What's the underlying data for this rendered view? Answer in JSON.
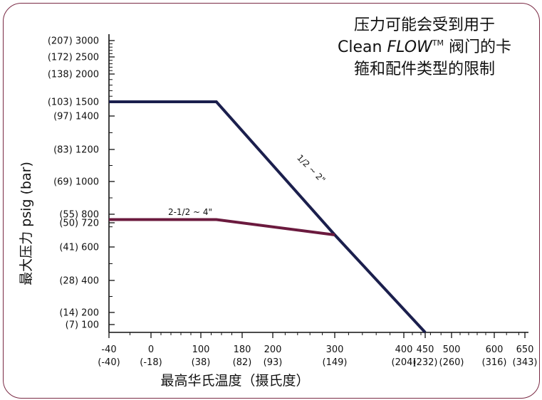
{
  "chart_data": {
    "type": "line",
    "title": {
      "line1": "压力可能会受到用于",
      "line2_prefix": "Clean ",
      "line2_italic": "FLOW",
      "line2_tm": "TM",
      "line2_suffix": " 阀门的卡",
      "line3": "箍和配件类型的限制"
    },
    "xlabel": "最高华氏温度（摄氏度）",
    "ylabel": "最大压力 psig (bar)",
    "xlim": [
      -40,
      650
    ],
    "ylim": [
      0,
      3000
    ],
    "x_ticks": [
      {
        "value": -40,
        "label": "-40",
        "sublabel": "(-40)"
      },
      {
        "value": 0,
        "label": "0",
        "sublabel": "(-18)"
      },
      {
        "value": 100,
        "label": "100",
        "sublabel": "(38)"
      },
      {
        "value": 180,
        "label": "180",
        "sublabel": "(82)"
      },
      {
        "value": 200,
        "label": "200",
        "sublabel": "(93)"
      },
      {
        "value": 300,
        "label": "300",
        "sublabel": "(149)"
      },
      {
        "value": 400,
        "label": "400",
        "sublabel": "(204)"
      },
      {
        "value": 450,
        "label": "450",
        "sublabel": "(232)"
      },
      {
        "value": 500,
        "label": "500",
        "sublabel": "(260)"
      },
      {
        "value": 600,
        "label": "600",
        "sublabel": "(316)"
      },
      {
        "value": 650,
        "label": "650",
        "sublabel": "(343)"
      }
    ],
    "y_ticks": [
      {
        "value": 3000,
        "label": "(207) 3000"
      },
      {
        "value": 2500,
        "label": "(172) 2500"
      },
      {
        "value": 2000,
        "label": "(138) 2000"
      },
      {
        "value": 1500,
        "label": "(103) 1500"
      },
      {
        "value": 1400,
        "label": "(97) 1400"
      },
      {
        "value": 1200,
        "label": "(83) 1200"
      },
      {
        "value": 1000,
        "label": "(69) 1000"
      },
      {
        "value": 800,
        "label": "(55)  800"
      },
      {
        "value": 720,
        "label": "(50)  720"
      },
      {
        "value": 600,
        "label": "(41)  600"
      },
      {
        "value": 400,
        "label": "(28)  400"
      },
      {
        "value": 200,
        "label": "(14)  200"
      },
      {
        "value": 100,
        "label": "(7)  100"
      }
    ],
    "series": [
      {
        "name": "1/2 ~ 2\"",
        "color": "#1b1f4d",
        "points": [
          [
            -40,
            1500
          ],
          [
            130,
            1500
          ],
          [
            300,
            660
          ],
          [
            450,
            0
          ]
        ]
      },
      {
        "name": "2-1/2 ~ 4\"",
        "color": "#6b1a3e",
        "points": [
          [
            -40,
            750
          ],
          [
            130,
            750
          ],
          [
            300,
            660
          ]
        ]
      }
    ],
    "grid": false,
    "colors": {
      "frame": "#7a2a44",
      "axis": "#111111"
    }
  }
}
